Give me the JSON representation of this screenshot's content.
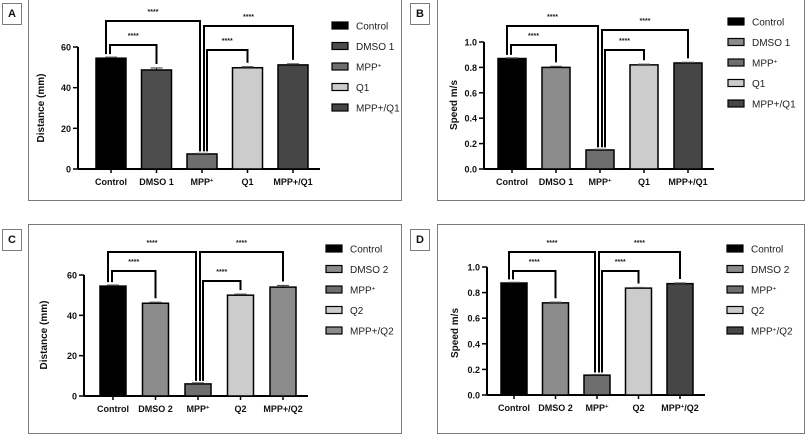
{
  "chart_data": [
    {
      "panel": "A",
      "type": "bar",
      "categories": [
        "Control",
        "DMSO 1",
        "MPP+",
        "Q1",
        "MPP+/Q1"
      ],
      "category_labels": [
        {
          "main": "Control",
          "sup": ""
        },
        {
          "main": "DMSO 1",
          "sup": ""
        },
        {
          "main": "MPP",
          "sup": "+"
        },
        {
          "main": "Q1",
          "sup": ""
        },
        {
          "main": "MPP+/Q1",
          "sup": ""
        }
      ],
      "values": [
        54.5,
        48.7,
        7.4,
        49.8,
        51.2
      ],
      "errors": [
        0.5,
        1.0,
        0.3,
        0.5,
        0.5
      ],
      "colors": [
        "#000000",
        "#4d4d4d",
        "#6e6e6e",
        "#cccccc",
        "#464646"
      ],
      "legend": [
        {
          "main": "Control",
          "sup": ""
        },
        {
          "main": "DMSO 1",
          "sup": ""
        },
        {
          "main": "MPP",
          "sup": "+"
        },
        {
          "main": "Q1",
          "sup": ""
        },
        {
          "main": "MPP+/Q1",
          "sup": ""
        }
      ],
      "legend_position": "right",
      "ylabel": "Distance (mm)",
      "xlabel": "",
      "ylim": [
        0,
        60
      ],
      "yticks": [
        0,
        20,
        40,
        60
      ],
      "ytick_labels": [
        "0",
        "20",
        "40",
        "60"
      ],
      "grid": false,
      "significance": [
        {
          "from": 0,
          "to": 2,
          "label": "****",
          "level": 1
        },
        {
          "from": 0,
          "to": 1,
          "label": "****",
          "level": 0
        },
        {
          "from": 2,
          "to": 4,
          "label": "****",
          "level": 1
        },
        {
          "from": 2,
          "to": 3,
          "label": "****",
          "level": 0
        }
      ]
    },
    {
      "panel": "B",
      "type": "bar",
      "categories": [
        "Control",
        "DMSO 1",
        "MPP+",
        "Q1",
        "MPP+/Q1"
      ],
      "category_labels": [
        {
          "main": "Control",
          "sup": ""
        },
        {
          "main": "DMSO 1",
          "sup": ""
        },
        {
          "main": "MPP",
          "sup": "+"
        },
        {
          "main": "Q1",
          "sup": ""
        },
        {
          "main": "MPP+/Q1",
          "sup": ""
        }
      ],
      "values": [
        0.87,
        0.8,
        0.15,
        0.82,
        0.835
      ],
      "errors": [
        0.005,
        0.008,
        0.005,
        0.005,
        0.005
      ],
      "colors": [
        "#000000",
        "#8c8c8c",
        "#6e6e6e",
        "#cccccc",
        "#464646"
      ],
      "legend": [
        {
          "main": "Control",
          "sup": ""
        },
        {
          "main": "DMSO 1",
          "sup": ""
        },
        {
          "main": "MPP",
          "sup": "+"
        },
        {
          "main": "Q1",
          "sup": ""
        },
        {
          "main": "MPP+/Q1",
          "sup": ""
        }
      ],
      "legend_position": "right",
      "ylabel": "Speed m/s",
      "xlabel": "",
      "ylim": [
        0,
        1.0
      ],
      "yticks": [
        0,
        0.2,
        0.4,
        0.6,
        0.8,
        1.0
      ],
      "ytick_labels": [
        "0.0",
        "0.2",
        "0.4",
        "0.6",
        "0.8",
        "1.0"
      ],
      "grid": false,
      "significance": [
        {
          "from": 0,
          "to": 2,
          "label": "****",
          "level": 1
        },
        {
          "from": 0,
          "to": 1,
          "label": "****",
          "level": 0
        },
        {
          "from": 2,
          "to": 4,
          "label": "****",
          "level": 1
        },
        {
          "from": 2,
          "to": 3,
          "label": "****",
          "level": 0
        }
      ]
    },
    {
      "panel": "C",
      "type": "bar",
      "categories": [
        "Control",
        "DMSO 2",
        "MPP+",
        "Q2",
        "MPP+/Q2"
      ],
      "category_labels": [
        {
          "main": "Control",
          "sup": ""
        },
        {
          "main": "DMSO 2",
          "sup": ""
        },
        {
          "main": "MPP",
          "sup": "+"
        },
        {
          "main": "Q2",
          "sup": ""
        },
        {
          "main": "MPP+/Q2",
          "sup": ""
        }
      ],
      "values": [
        54.5,
        46.0,
        6.0,
        50.0,
        54.0
      ],
      "errors": [
        0.5,
        0.5,
        0.5,
        0.5,
        0.8
      ],
      "colors": [
        "#000000",
        "#8c8c8c",
        "#6e6e6e",
        "#cccccc",
        "#8c8c8c"
      ],
      "legend": [
        {
          "main": "Control",
          "sup": ""
        },
        {
          "main": "DMSO 2",
          "sup": ""
        },
        {
          "main": "MPP",
          "sup": "+"
        },
        {
          "main": "Q2",
          "sup": ""
        },
        {
          "main": "MPP+/Q2",
          "sup": ""
        }
      ],
      "legend_position": "right",
      "ylabel": "Distance (mm)",
      "xlabel": "",
      "ylim": [
        0,
        60
      ],
      "yticks": [
        0,
        20,
        40,
        60
      ],
      "ytick_labels": [
        "0",
        "20",
        "40",
        "60"
      ],
      "grid": false,
      "significance": [
        {
          "from": 0,
          "to": 2,
          "label": "****",
          "level": 1
        },
        {
          "from": 0,
          "to": 1,
          "label": "****",
          "level": 0
        },
        {
          "from": 2,
          "to": 4,
          "label": "****",
          "level": 1
        },
        {
          "from": 2,
          "to": 3,
          "label": "****",
          "level": 0
        }
      ]
    },
    {
      "panel": "D",
      "type": "bar",
      "categories": [
        "Control",
        "DMSO 2",
        "MPP+",
        "Q2",
        "MPP+/Q2"
      ],
      "category_labels": [
        {
          "main": "Control",
          "sup": ""
        },
        {
          "main": "DMSO 2",
          "sup": ""
        },
        {
          "main": "MPP",
          "sup": "+"
        },
        {
          "main": "Q2",
          "sup": ""
        },
        {
          "main": "MPP",
          "sup": "+",
          "tail": "/Q2"
        }
      ],
      "values": [
        0.875,
        0.72,
        0.155,
        0.835,
        0.87
      ],
      "errors": [
        0.005,
        0.005,
        0.005,
        0.005,
        0.005
      ],
      "colors": [
        "#000000",
        "#8c8c8c",
        "#6e6e6e",
        "#cccccc",
        "#464646"
      ],
      "legend": [
        {
          "main": "Control",
          "sup": ""
        },
        {
          "main": "DMSO 2",
          "sup": ""
        },
        {
          "main": "MPP",
          "sup": "+"
        },
        {
          "main": "Q2",
          "sup": ""
        },
        {
          "main": "MPP",
          "sup": "+",
          "tail": "/Q2"
        }
      ],
      "legend_position": "right",
      "ylabel": "Speed m/s",
      "xlabel": "",
      "ylim": [
        0,
        1.0
      ],
      "yticks": [
        0,
        0.2,
        0.4,
        0.6,
        0.8,
        1.0
      ],
      "ytick_labels": [
        "0.0",
        "0.2",
        "0.4",
        "0.6",
        "0.8",
        "1.0"
      ],
      "grid": false,
      "significance": [
        {
          "from": 0,
          "to": 2,
          "label": "****",
          "level": 1
        },
        {
          "from": 0,
          "to": 1,
          "label": "****",
          "level": 0
        },
        {
          "from": 2,
          "to": 4,
          "label": "****",
          "level": 1
        },
        {
          "from": 2,
          "to": 3,
          "label": "****",
          "level": 0
        }
      ]
    }
  ]
}
